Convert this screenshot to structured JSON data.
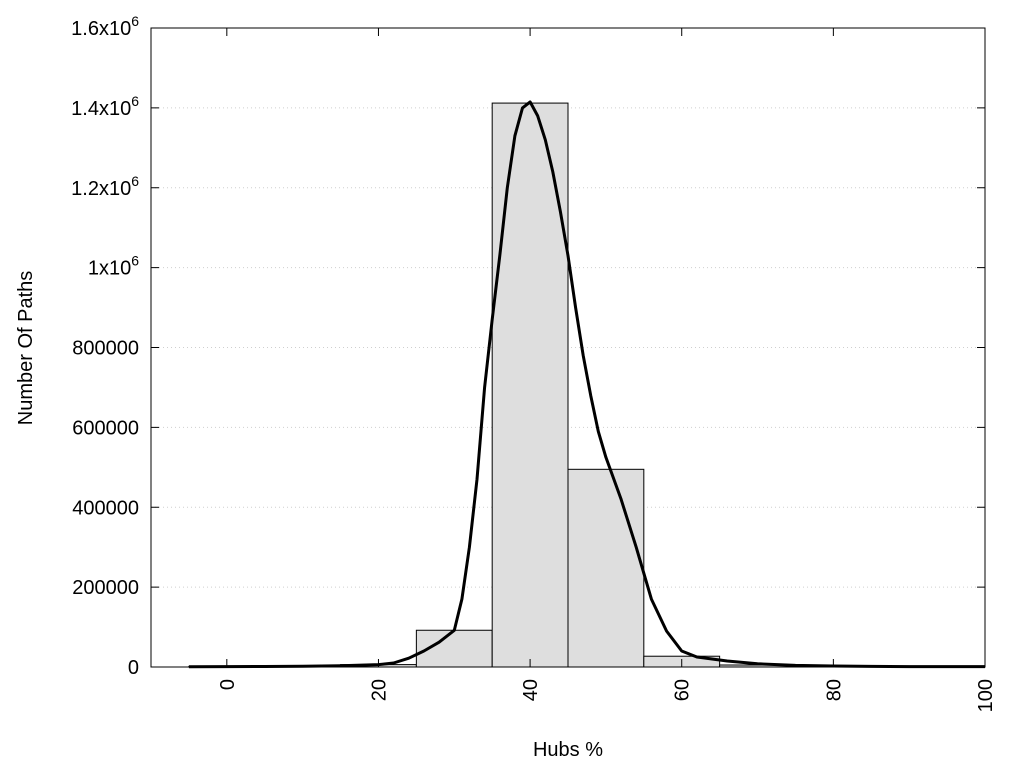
{
  "chart_data": {
    "type": "bar",
    "title": "",
    "xlabel": "Hubs %",
    "ylabel": "Number Of Paths",
    "xlim": [
      -10,
      100
    ],
    "ylim": [
      0,
      1600000
    ],
    "grid": "horizontal-dotted",
    "x_ticks": [
      0,
      20,
      40,
      60,
      80,
      100
    ],
    "y_ticks": [
      {
        "value": 0,
        "mant": "0",
        "exp": ""
      },
      {
        "value": 200000,
        "mant": "200000",
        "exp": ""
      },
      {
        "value": 400000,
        "mant": "400000",
        "exp": ""
      },
      {
        "value": 600000,
        "mant": "600000",
        "exp": ""
      },
      {
        "value": 800000,
        "mant": "800000",
        "exp": ""
      },
      {
        "value": 1000000,
        "mant": "1x10",
        "exp": "6"
      },
      {
        "value": 1200000,
        "mant": "1.2x10",
        "exp": "6"
      },
      {
        "value": 1400000,
        "mant": "1.4x10",
        "exp": "6"
      },
      {
        "value": 1600000,
        "mant": "1.6x10",
        "exp": "6"
      }
    ],
    "bars": [
      {
        "x0": -5,
        "x1": 5,
        "value": 1500
      },
      {
        "x0": 5,
        "x1": 15,
        "value": 2000
      },
      {
        "x0": 15,
        "x1": 25,
        "value": 6000
      },
      {
        "x0": 25,
        "x1": 35,
        "value": 92000
      },
      {
        "x0": 35,
        "x1": 45,
        "value": 1412000
      },
      {
        "x0": 45,
        "x1": 55,
        "value": 495000
      },
      {
        "x0": 55,
        "x1": 65,
        "value": 27000
      },
      {
        "x0": 65,
        "x1": 75,
        "value": 5000
      },
      {
        "x0": 75,
        "x1": 85,
        "value": 2000
      },
      {
        "x0": 85,
        "x1": 95,
        "value": 1000
      },
      {
        "x0": 95,
        "x1": 100,
        "value": 800
      }
    ],
    "curve": [
      [
        -5,
        800
      ],
      [
        0,
        1000
      ],
      [
        5,
        1200
      ],
      [
        10,
        1800
      ],
      [
        15,
        3000
      ],
      [
        20,
        6000
      ],
      [
        22,
        10000
      ],
      [
        24,
        22000
      ],
      [
        26,
        40000
      ],
      [
        28,
        62000
      ],
      [
        30,
        92000
      ],
      [
        31,
        170000
      ],
      [
        32,
        300000
      ],
      [
        33,
        470000
      ],
      [
        34,
        700000
      ],
      [
        35,
        870000
      ],
      [
        36,
        1030000
      ],
      [
        37,
        1200000
      ],
      [
        38,
        1330000
      ],
      [
        39,
        1400000
      ],
      [
        40,
        1415000
      ],
      [
        41,
        1380000
      ],
      [
        42,
        1320000
      ],
      [
        43,
        1240000
      ],
      [
        44,
        1140000
      ],
      [
        45,
        1030000
      ],
      [
        46,
        900000
      ],
      [
        47,
        780000
      ],
      [
        48,
        680000
      ],
      [
        49,
        590000
      ],
      [
        50,
        525000
      ],
      [
        52,
        420000
      ],
      [
        54,
        300000
      ],
      [
        56,
        170000
      ],
      [
        58,
        90000
      ],
      [
        60,
        40000
      ],
      [
        62,
        25000
      ],
      [
        66,
        15000
      ],
      [
        70,
        8000
      ],
      [
        75,
        4000
      ],
      [
        80,
        2500
      ],
      [
        85,
        1500
      ],
      [
        90,
        1000
      ],
      [
        95,
        1000
      ],
      [
        100,
        900
      ]
    ],
    "colors": {
      "bar_fill": "#dedede",
      "bar_stroke": "#000000",
      "curve": "#000000",
      "grid": "#cfcfcf"
    }
  }
}
